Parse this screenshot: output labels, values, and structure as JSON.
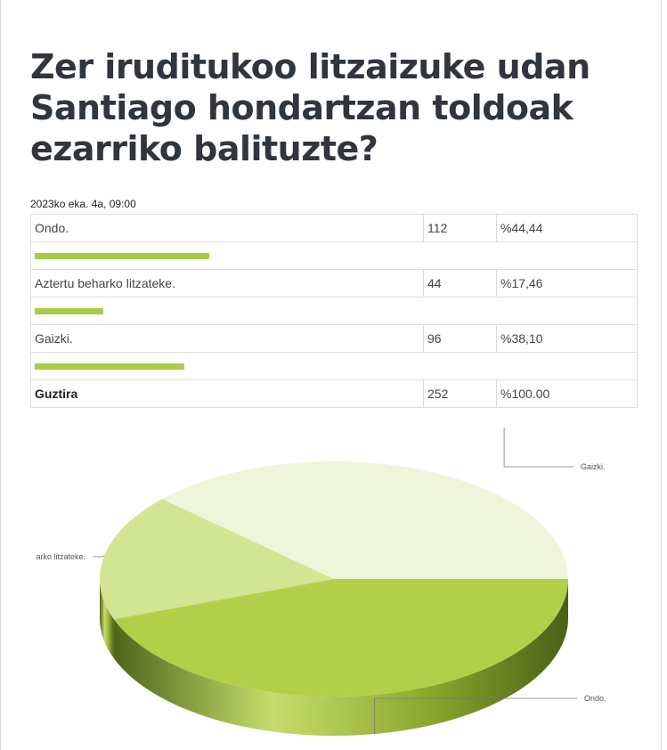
{
  "title": "Zer iruditukoo litzaizuke udan Santiago hondartzan toldoak ezarriko balituzte?",
  "date": "2023ko eka. 4a, 09:00",
  "rows": [
    {
      "label": "Ondo.",
      "count": "112",
      "percent": "%44,44",
      "fraction": 0.4444
    },
    {
      "label": "Aztertu beharko litzateke.",
      "count": "44",
      "percent": "%17,46",
      "fraction": 0.1746
    },
    {
      "label": "Gaizki.",
      "count": "96",
      "percent": "%38,10",
      "fraction": 0.381
    }
  ],
  "total": {
    "label": "Guztira",
    "count": "252",
    "percent": "%100.00"
  },
  "colors": {
    "bar": "#a8cc46",
    "ondo": "#b3cf4a",
    "aztertu": "#d2e592",
    "gaizki": "#eff5da",
    "side_dark": "#5d741e"
  },
  "chart_data": {
    "type": "pie",
    "categories": [
      "Ondo.",
      "Aztertu beharko litzateke.",
      "Gaizki."
    ],
    "values": [
      112,
      44,
      96
    ],
    "slice_labels": [
      "Ondo.",
      "arko litzateke.",
      "Gaizki."
    ]
  }
}
